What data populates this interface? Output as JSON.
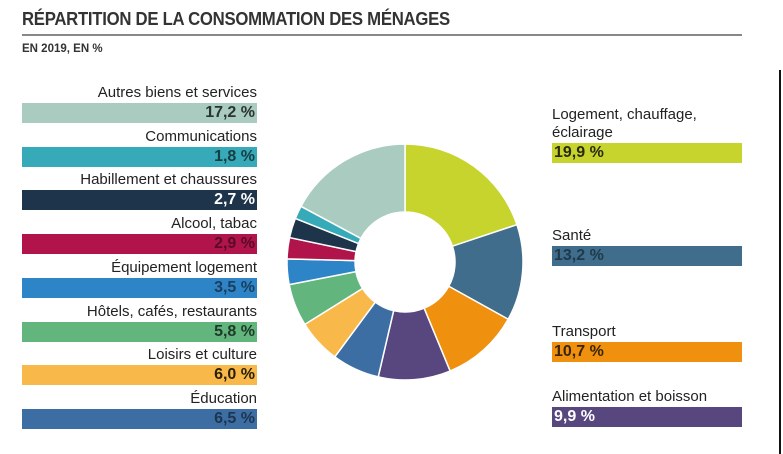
{
  "chart_data": {
    "type": "pie",
    "donut": true,
    "title": "RÉPARTITION DE LA CONSOMMATION DES MÉNAGES",
    "subtitle": "EN 2019, EN %",
    "slices": [
      {
        "label": "Logement, chauffage, éclairage",
        "label_lines": [
          "Logement, chauffage,",
          "éclairage"
        ],
        "value": 19.9,
        "display": "19,9 %",
        "color": "#c8d42e",
        "text_color": "#2a2a10",
        "side": "right"
      },
      {
        "label": "Santé",
        "label_lines": [
          "Santé"
        ],
        "value": 13.2,
        "display": "13,2 %",
        "color": "#3f6d8b",
        "text_color": "#1f3a4c",
        "side": "right"
      },
      {
        "label": "Transport",
        "label_lines": [
          "Transport"
        ],
        "value": 10.7,
        "display": "10,7 %",
        "color": "#f0900f",
        "text_color": "#3a2505",
        "side": "right"
      },
      {
        "label": "Alimentation et boisson",
        "label_lines": [
          "Alimentation et boisson"
        ],
        "value": 9.9,
        "display": "9,9 %",
        "color": "#57477e",
        "text_color": "#ffffff",
        "side": "right"
      },
      {
        "label": "Éducation",
        "label_lines": [
          "Éducation"
        ],
        "value": 6.5,
        "display": "6,5 %",
        "color": "#3d6ea3",
        "text_color": "#1d3550",
        "side": "left"
      },
      {
        "label": "Loisirs et culture",
        "label_lines": [
          "Loisirs et culture"
        ],
        "value": 6.0,
        "display": "6,0 %",
        "color": "#f9b94a",
        "text_color": "#2a2008",
        "side": "left"
      },
      {
        "label": "Hôtels, cafés, restaurants",
        "label_lines": [
          "Hôtels, cafés, restaurants"
        ],
        "value": 5.8,
        "display": "5,8 %",
        "color": "#61b57d",
        "text_color": "#1e3a26",
        "side": "left"
      },
      {
        "label": "Équipement logement",
        "label_lines": [
          "Équipement logement"
        ],
        "value": 3.5,
        "display": "3,5 %",
        "color": "#2d84c6",
        "text_color": "#1b3e5e",
        "side": "left"
      },
      {
        "label": "Alcool, tabac",
        "label_lines": [
          "Alcool, tabac"
        ],
        "value": 2.9,
        "display": "2,9 %",
        "color": "#b0144a",
        "text_color": "#5a0c26",
        "side": "left"
      },
      {
        "label": "Habillement et chaussures",
        "label_lines": [
          "Habillement et chaussures"
        ],
        "value": 2.7,
        "display": "2,7 %",
        "color": "#1d344b",
        "text_color": "#ffffff",
        "side": "left"
      },
      {
        "label": "Communications",
        "label_lines": [
          "Communications"
        ],
        "value": 1.8,
        "display": "1,8 %",
        "color": "#36aab8",
        "text_color": "#173e44",
        "side": "left"
      },
      {
        "label": "Autres biens et services",
        "label_lines": [
          "Autres biens et services"
        ],
        "value": 17.2,
        "display": "17,2 %",
        "color": "#a9cbc0",
        "text_color": "#2a3530",
        "side": "left"
      }
    ]
  }
}
